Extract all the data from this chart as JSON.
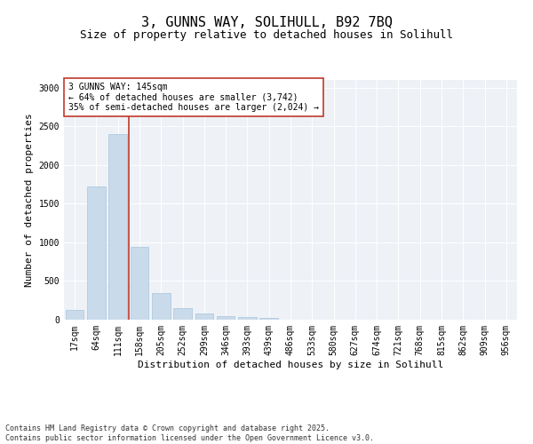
{
  "title_line1": "3, GUNNS WAY, SOLIHULL, B92 7BQ",
  "title_line2": "Size of property relative to detached houses in Solihull",
  "xlabel": "Distribution of detached houses by size in Solihull",
  "ylabel": "Number of detached properties",
  "categories": [
    "17sqm",
    "64sqm",
    "111sqm",
    "158sqm",
    "205sqm",
    "252sqm",
    "299sqm",
    "346sqm",
    "393sqm",
    "439sqm",
    "486sqm",
    "533sqm",
    "580sqm",
    "627sqm",
    "674sqm",
    "721sqm",
    "768sqm",
    "815sqm",
    "862sqm",
    "909sqm",
    "956sqm"
  ],
  "values": [
    130,
    1720,
    2400,
    940,
    350,
    155,
    80,
    50,
    40,
    20,
    5,
    0,
    0,
    0,
    0,
    0,
    0,
    0,
    0,
    0,
    0
  ],
  "bar_color": "#c9daea",
  "bar_edgecolor": "#a8c4dc",
  "vline_color": "#c0392b",
  "annotation_text": "3 GUNNS WAY: 145sqm\n← 64% of detached houses are smaller (3,742)\n35% of semi-detached houses are larger (2,024) →",
  "annotation_box_color": "#c0392b",
  "ylim": [
    0,
    3100
  ],
  "yticks": [
    0,
    500,
    1000,
    1500,
    2000,
    2500,
    3000
  ],
  "background_color": "#eef2f7",
  "footer_line1": "Contains HM Land Registry data © Crown copyright and database right 2025.",
  "footer_line2": "Contains public sector information licensed under the Open Government Licence v3.0.",
  "title_fontsize": 11,
  "subtitle_fontsize": 9,
  "axis_label_fontsize": 8,
  "tick_fontsize": 7,
  "annotation_fontsize": 7,
  "footer_fontsize": 6
}
